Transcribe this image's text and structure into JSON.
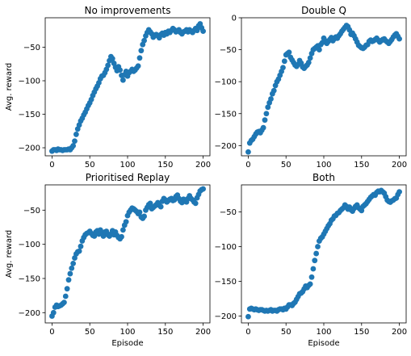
{
  "figure": {
    "background": "#ffffff",
    "marker_color": "#1f77b4"
  },
  "chart_data": [
    {
      "type": "scatter",
      "title": "No improvements",
      "xlabel": "",
      "ylabel": "Avg. reward",
      "xlim": [
        -9,
        209
      ],
      "ylim": [
        -212,
        -6
      ],
      "xticks": [
        0,
        50,
        100,
        150,
        200
      ],
      "yticks": [
        -200,
        -150,
        -100,
        -50
      ],
      "grid": false,
      "legend": "none",
      "color": "#1f77b4",
      "x": [
        0,
        2,
        4,
        6,
        8,
        10,
        12,
        14,
        16,
        18,
        20,
        22,
        24,
        26,
        28,
        30,
        32,
        34,
        36,
        38,
        40,
        42,
        44,
        46,
        48,
        50,
        52,
        54,
        56,
        58,
        60,
        62,
        64,
        66,
        68,
        70,
        72,
        74,
        76,
        78,
        80,
        82,
        84,
        86,
        88,
        90,
        92,
        94,
        96,
        98,
        100,
        102,
        104,
        106,
        108,
        110,
        112,
        114,
        116,
        118,
        120,
        122,
        124,
        126,
        128,
        130,
        132,
        134,
        136,
        138,
        140,
        142,
        144,
        146,
        148,
        150,
        152,
        154,
        156,
        158,
        160,
        162,
        164,
        166,
        168,
        170,
        172,
        174,
        176,
        178,
        180,
        182,
        184,
        186,
        188,
        190,
        192,
        194,
        196,
        198,
        200
      ],
      "y": [
        -205,
        -203,
        -203,
        -204,
        -202,
        -203,
        -203,
        -204,
        -203,
        -203,
        -203,
        -202,
        -203,
        -200,
        -197,
        -190,
        -180,
        -172,
        -166,
        -160,
        -156,
        -151,
        -147,
        -142,
        -137,
        -133,
        -128,
        -122,
        -117,
        -112,
        -108,
        -103,
        -97,
        -93,
        -92,
        -88,
        -83,
        -77,
        -70,
        -64,
        -67,
        -74,
        -80,
        -85,
        -79,
        -84,
        -92,
        -99,
        -91,
        -86,
        -93,
        -88,
        -86,
        -83,
        -86,
        -84,
        -81,
        -78,
        -66,
        -55,
        -46,
        -40,
        -33,
        -28,
        -24,
        -27,
        -30,
        -35,
        -32,
        -31,
        -33,
        -36,
        -31,
        -29,
        -32,
        -28,
        -30,
        -26,
        -28,
        -25,
        -22,
        -24,
        -27,
        -26,
        -24,
        -28,
        -30,
        -27,
        -26,
        -24,
        -27,
        -24,
        -26,
        -28,
        -25,
        -22,
        -25,
        -18,
        -15,
        -21,
        -26
      ]
    },
    {
      "type": "scatter",
      "title": "Double Q",
      "xlabel": "",
      "ylabel": "",
      "xlim": [
        -9,
        209
      ],
      "ylim": [
        -216,
        0
      ],
      "xticks": [
        0,
        50,
        100,
        150,
        200
      ],
      "yticks": [
        -200,
        -150,
        -100,
        -50,
        0
      ],
      "grid": false,
      "legend": "none",
      "color": "#1f77b4",
      "x": [
        0,
        2,
        4,
        6,
        8,
        10,
        12,
        14,
        16,
        18,
        20,
        22,
        24,
        26,
        28,
        30,
        32,
        34,
        36,
        38,
        40,
        42,
        44,
        46,
        48,
        50,
        52,
        54,
        56,
        58,
        60,
        62,
        64,
        66,
        68,
        70,
        72,
        74,
        76,
        78,
        80,
        82,
        84,
        86,
        88,
        90,
        92,
        94,
        96,
        98,
        100,
        102,
        104,
        106,
        108,
        110,
        112,
        114,
        116,
        118,
        120,
        122,
        124,
        126,
        128,
        130,
        132,
        134,
        136,
        138,
        140,
        142,
        144,
        146,
        148,
        150,
        152,
        154,
        156,
        158,
        160,
        162,
        164,
        166,
        168,
        170,
        172,
        174,
        176,
        178,
        180,
        182,
        184,
        186,
        188,
        190,
        192,
        194,
        196,
        198,
        200
      ],
      "y": [
        -210,
        -196,
        -192,
        -190,
        -186,
        -182,
        -179,
        -178,
        -180,
        -176,
        -172,
        -160,
        -150,
        -140,
        -133,
        -127,
        -119,
        -114,
        -106,
        -100,
        -96,
        -90,
        -84,
        -78,
        -68,
        -58,
        -56,
        -54,
        -62,
        -66,
        -70,
        -74,
        -76,
        -73,
        -67,
        -71,
        -77,
        -79,
        -76,
        -74,
        -70,
        -63,
        -56,
        -50,
        -48,
        -46,
        -44,
        -50,
        -42,
        -39,
        -32,
        -36,
        -40,
        -37,
        -34,
        -31,
        -36,
        -33,
        -30,
        -32,
        -28,
        -25,
        -21,
        -18,
        -15,
        -12,
        -14,
        -19,
        -26,
        -24,
        -28,
        -33,
        -38,
        -43,
        -45,
        -47,
        -48,
        -46,
        -43,
        -42,
        -37,
        -35,
        -37,
        -36,
        -34,
        -32,
        -35,
        -38,
        -36,
        -34,
        -33,
        -36,
        -38,
        -40,
        -37,
        -34,
        -30,
        -27,
        -25,
        -29,
        -33
      ]
    },
    {
      "type": "scatter",
      "title": "Prioritised Replay",
      "xlabel": "Episode",
      "ylabel": "Avg. reward",
      "xlim": [
        -9,
        209
      ],
      "ylim": [
        -215,
        -13
      ],
      "xticks": [
        0,
        50,
        100,
        150,
        200
      ],
      "yticks": [
        -200,
        -150,
        -100,
        -50
      ],
      "grid": false,
      "legend": "none",
      "color": "#1f77b4",
      "x": [
        0,
        2,
        4,
        6,
        8,
        10,
        12,
        14,
        16,
        18,
        20,
        22,
        24,
        26,
        28,
        30,
        32,
        34,
        36,
        38,
        40,
        42,
        44,
        46,
        48,
        50,
        52,
        54,
        56,
        58,
        60,
        62,
        64,
        66,
        68,
        70,
        72,
        74,
        76,
        78,
        80,
        82,
        84,
        86,
        88,
        90,
        92,
        94,
        96,
        98,
        100,
        102,
        104,
        106,
        108,
        110,
        112,
        114,
        116,
        118,
        120,
        122,
        124,
        126,
        128,
        130,
        132,
        134,
        136,
        138,
        140,
        142,
        144,
        146,
        148,
        150,
        152,
        154,
        156,
        158,
        160,
        162,
        164,
        166,
        168,
        170,
        172,
        174,
        176,
        178,
        180,
        182,
        184,
        186,
        188,
        190,
        192,
        194,
        196,
        198,
        200
      ],
      "y": [
        -205,
        -200,
        -192,
        -189,
        -191,
        -190,
        -189,
        -187,
        -185,
        -176,
        -165,
        -152,
        -143,
        -135,
        -128,
        -120,
        -114,
        -111,
        -110,
        -103,
        -95,
        -90,
        -86,
        -84,
        -83,
        -81,
        -84,
        -87,
        -88,
        -82,
        -80,
        -85,
        -79,
        -83,
        -88,
        -82,
        -81,
        -86,
        -88,
        -85,
        -80,
        -86,
        -82,
        -87,
        -90,
        -92,
        -89,
        -79,
        -72,
        -67,
        -58,
        -53,
        -50,
        -47,
        -48,
        -50,
        -52,
        -55,
        -53,
        -60,
        -62,
        -59,
        -50,
        -46,
        -42,
        -40,
        -48,
        -46,
        -44,
        -42,
        -39,
        -43,
        -45,
        -37,
        -33,
        -35,
        -38,
        -36,
        -34,
        -33,
        -36,
        -35,
        -30,
        -28,
        -33,
        -37,
        -39,
        -34,
        -35,
        -38,
        -33,
        -29,
        -33,
        -35,
        -38,
        -40,
        -32,
        -27,
        -22,
        -20,
        -19
      ]
    },
    {
      "type": "scatter",
      "title": "Both",
      "xlabel": "Episode",
      "ylabel": "",
      "xlim": [
        -9,
        209
      ],
      "ylim": [
        -210,
        -11
      ],
      "xticks": [
        0,
        50,
        100,
        150,
        200
      ],
      "yticks": [
        -200,
        -150,
        -100,
        -50
      ],
      "grid": false,
      "legend": "none",
      "color": "#1f77b4",
      "x": [
        0,
        2,
        4,
        6,
        8,
        10,
        12,
        14,
        16,
        18,
        20,
        22,
        24,
        26,
        28,
        30,
        32,
        34,
        36,
        38,
        40,
        42,
        44,
        46,
        48,
        50,
        52,
        54,
        56,
        58,
        60,
        62,
        64,
        66,
        68,
        70,
        72,
        74,
        76,
        78,
        80,
        82,
        84,
        86,
        88,
        90,
        92,
        94,
        96,
        98,
        100,
        102,
        104,
        106,
        108,
        110,
        112,
        114,
        116,
        118,
        120,
        122,
        124,
        126,
        128,
        130,
        132,
        134,
        136,
        138,
        140,
        142,
        144,
        146,
        148,
        150,
        152,
        154,
        156,
        158,
        160,
        162,
        164,
        166,
        168,
        170,
        172,
        174,
        176,
        178,
        180,
        182,
        184,
        186,
        188,
        190,
        192,
        194,
        196,
        198,
        200
      ],
      "y": [
        -201,
        -190,
        -189,
        -190,
        -191,
        -190,
        -191,
        -192,
        -191,
        -191,
        -192,
        -193,
        -192,
        -193,
        -192,
        -191,
        -193,
        -192,
        -192,
        -193,
        -191,
        -190,
        -190,
        -191,
        -189,
        -190,
        -187,
        -184,
        -184,
        -185,
        -182,
        -180,
        -176,
        -172,
        -168,
        -167,
        -165,
        -161,
        -157,
        -159,
        -156,
        -154,
        -144,
        -132,
        -120,
        -110,
        -100,
        -92,
        -88,
        -86,
        -82,
        -78,
        -74,
        -70,
        -67,
        -62,
        -60,
        -56,
        -55,
        -52,
        -51,
        -48,
        -46,
        -44,
        -40,
        -42,
        -46,
        -43,
        -47,
        -49,
        -45,
        -42,
        -40,
        -44,
        -46,
        -48,
        -42,
        -40,
        -38,
        -35,
        -32,
        -29,
        -27,
        -25,
        -26,
        -22,
        -20,
        -21,
        -19,
        -21,
        -23,
        -28,
        -33,
        -35,
        -36,
        -34,
        -33,
        -31,
        -30,
        -25,
        -21
      ]
    }
  ]
}
